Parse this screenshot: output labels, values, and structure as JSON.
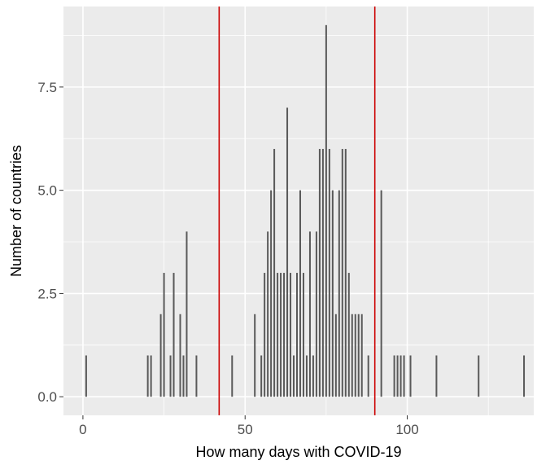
{
  "chart_data": {
    "type": "bar",
    "title": "",
    "xlabel": "How many days with COVID-19",
    "ylabel": "Number of countries",
    "xlim": [
      -6,
      139
    ],
    "ylim": [
      -0.45,
      9.45
    ],
    "x_ticks": [
      0,
      50,
      100
    ],
    "x_tick_labels": [
      "0",
      "50",
      "100"
    ],
    "y_ticks": [
      0,
      2.5,
      5,
      7.5
    ],
    "y_tick_labels": [
      "0.0",
      "2.5",
      "5.0",
      "7.5"
    ],
    "grid": true,
    "legend": "none",
    "bar_color": "#595959",
    "background_color": "#ebebeb",
    "grid_color": "#ffffff",
    "reference_line_color": "#cc0000",
    "reference_lines_x": [
      42,
      90
    ],
    "points": [
      {
        "x": 1,
        "y": 1
      },
      {
        "x": 20,
        "y": 1
      },
      {
        "x": 21,
        "y": 1
      },
      {
        "x": 24,
        "y": 2
      },
      {
        "x": 25,
        "y": 3
      },
      {
        "x": 27,
        "y": 1
      },
      {
        "x": 28,
        "y": 3
      },
      {
        "x": 30,
        "y": 2
      },
      {
        "x": 31,
        "y": 1
      },
      {
        "x": 32,
        "y": 4
      },
      {
        "x": 35,
        "y": 1
      },
      {
        "x": 46,
        "y": 1
      },
      {
        "x": 53,
        "y": 2
      },
      {
        "x": 55,
        "y": 1
      },
      {
        "x": 56,
        "y": 3
      },
      {
        "x": 57,
        "y": 4
      },
      {
        "x": 58,
        "y": 5
      },
      {
        "x": 59,
        "y": 6
      },
      {
        "x": 60,
        "y": 3
      },
      {
        "x": 61,
        "y": 3
      },
      {
        "x": 62,
        "y": 3
      },
      {
        "x": 63,
        "y": 7
      },
      {
        "x": 64,
        "y": 3
      },
      {
        "x": 65,
        "y": 1
      },
      {
        "x": 66,
        "y": 3
      },
      {
        "x": 67,
        "y": 5
      },
      {
        "x": 68,
        "y": 3
      },
      {
        "x": 69,
        "y": 1
      },
      {
        "x": 70,
        "y": 4
      },
      {
        "x": 71,
        "y": 1
      },
      {
        "x": 72,
        "y": 4
      },
      {
        "x": 73,
        "y": 6
      },
      {
        "x": 74,
        "y": 6
      },
      {
        "x": 75,
        "y": 9
      },
      {
        "x": 76,
        "y": 6
      },
      {
        "x": 77,
        "y": 5
      },
      {
        "x": 78,
        "y": 2
      },
      {
        "x": 79,
        "y": 5
      },
      {
        "x": 80,
        "y": 6
      },
      {
        "x": 81,
        "y": 6
      },
      {
        "x": 82,
        "y": 3
      },
      {
        "x": 83,
        "y": 2
      },
      {
        "x": 84,
        "y": 2
      },
      {
        "x": 85,
        "y": 2
      },
      {
        "x": 86,
        "y": 2
      },
      {
        "x": 88,
        "y": 1
      },
      {
        "x": 92,
        "y": 5
      },
      {
        "x": 96,
        "y": 1
      },
      {
        "x": 97,
        "y": 1
      },
      {
        "x": 98,
        "y": 1
      },
      {
        "x": 99,
        "y": 1
      },
      {
        "x": 101,
        "y": 1
      },
      {
        "x": 109,
        "y": 1
      },
      {
        "x": 122,
        "y": 1
      },
      {
        "x": 136,
        "y": 1
      }
    ]
  }
}
